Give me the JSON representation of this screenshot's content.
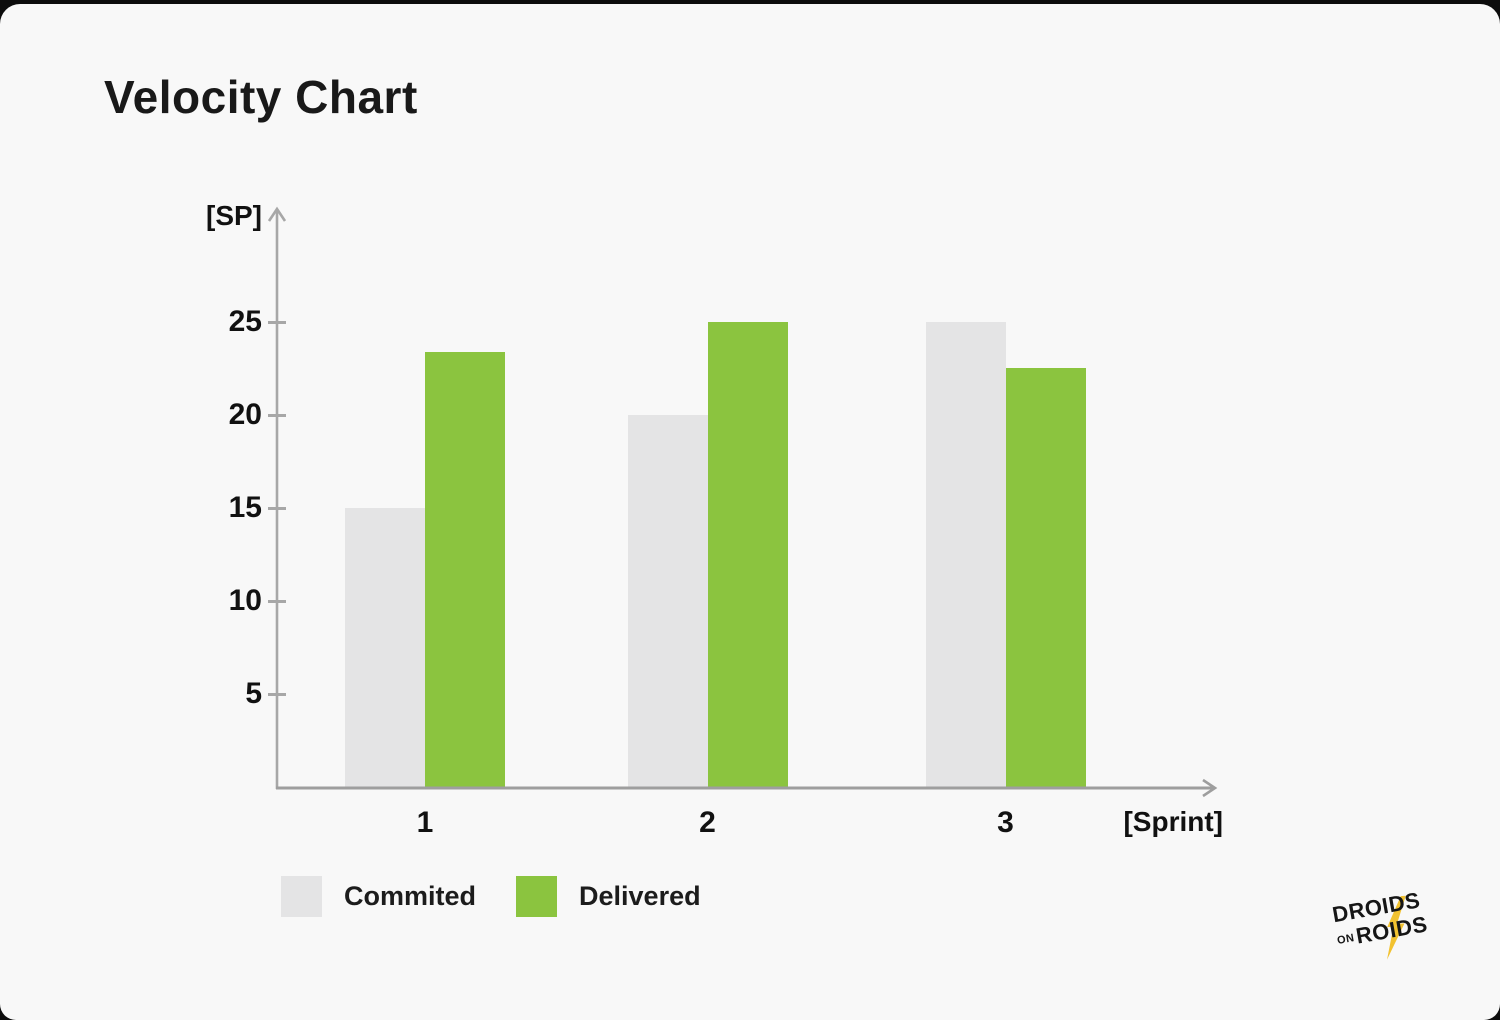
{
  "title": "Velocity Chart",
  "chart_data": {
    "type": "bar",
    "title": "Velocity Chart",
    "categories": [
      "1",
      "2",
      "3"
    ],
    "series": [
      {
        "name": "Commited",
        "color": "#e4e4e5",
        "values": [
          15,
          20,
          25
        ]
      },
      {
        "name": "Delivered",
        "color": "#8bc43f",
        "values": [
          23.4,
          25,
          22.5
        ]
      }
    ],
    "xlabel": "[Sprint]",
    "ylabel": "[SP]",
    "yticks": [
      5,
      10,
      15,
      20,
      25
    ],
    "ylim": [
      0,
      31
    ],
    "grid": false,
    "legend_position": "bottom-left"
  },
  "colors": {
    "background": "#f8f8f8",
    "outer_background": "#0c0c0c",
    "axis": "#a7a7a7",
    "text": "#111111",
    "committed_bar": "#e4e4e5",
    "delivered_bar": "#8bc43f",
    "logo_bolt": "#f2c230",
    "logo_text": "#161616"
  },
  "logo": {
    "line1": "DROIDS",
    "line2_small": "ON",
    "line2": "ROIDS",
    "bolt_icon": "lightning-bolt-icon"
  }
}
